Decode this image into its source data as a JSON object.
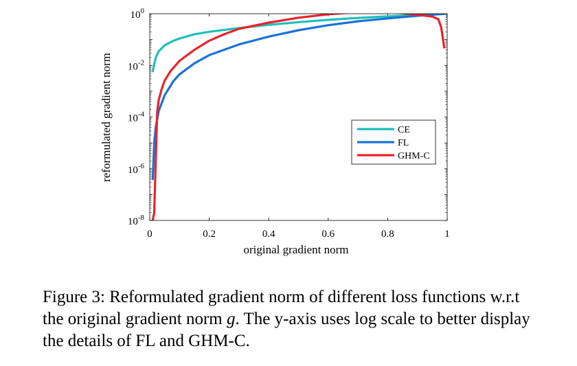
{
  "chart_data": {
    "type": "line",
    "xlabel": "original gradient norm",
    "ylabel": "reformulated gradient norm",
    "x_scale": "linear",
    "y_scale": "log",
    "xlim": [
      0,
      1
    ],
    "ylim": [
      1e-08,
      1
    ],
    "x_ticks": [
      0,
      0.2,
      0.4,
      0.6,
      0.8,
      1
    ],
    "x_tick_labels": [
      "0",
      "0.2",
      "0.4",
      "0.6",
      "0.8",
      "1"
    ],
    "y_ticks": [
      1e-08,
      1e-06,
      0.0001,
      0.01,
      1
    ],
    "y_tick_labels": [
      {
        "base": "10",
        "exp": "-8"
      },
      {
        "base": "10",
        "exp": "-6"
      },
      {
        "base": "10",
        "exp": "-4"
      },
      {
        "base": "10",
        "exp": "-2"
      },
      {
        "base": "10",
        "exp": "0"
      }
    ],
    "grid": false,
    "legend_position": "center-right",
    "series": [
      {
        "name": "CE",
        "color": "#1fbfb8",
        "x": [
          0.01,
          0.02,
          0.03,
          0.05,
          0.08,
          0.1,
          0.15,
          0.2,
          0.3,
          0.4,
          0.5,
          0.6,
          0.7,
          0.8,
          0.9,
          0.99
        ],
        "y": [
          0.006,
          0.02,
          0.035,
          0.06,
          0.09,
          0.11,
          0.16,
          0.2,
          0.28,
          0.37,
          0.47,
          0.58,
          0.69,
          0.79,
          0.9,
          0.99
        ]
      },
      {
        "name": "FL",
        "color": "#1a72d6",
        "x": [
          0.01,
          0.015,
          0.02,
          0.03,
          0.05,
          0.08,
          0.1,
          0.15,
          0.2,
          0.3,
          0.4,
          0.5,
          0.6,
          0.7,
          0.8,
          0.9,
          0.95,
          0.99
        ],
        "y": [
          4e-07,
          1e-05,
          4e-05,
          0.00017,
          0.0007,
          0.0025,
          0.0045,
          0.012,
          0.025,
          0.065,
          0.13,
          0.23,
          0.36,
          0.51,
          0.66,
          0.83,
          0.92,
          0.98
        ]
      },
      {
        "name": "GHM-C",
        "color": "#e8232b",
        "x": [
          0.01,
          0.015,
          0.02,
          0.025,
          0.03,
          0.04,
          0.05,
          0.07,
          0.1,
          0.15,
          0.2,
          0.25,
          0.3,
          0.4,
          0.5,
          0.6,
          0.7,
          0.75,
          0.8,
          0.85,
          0.9,
          0.95,
          0.97,
          0.98,
          0.99
        ],
        "y": [
          1e-08,
          2e-08,
          2e-06,
          0.00015,
          0.00045,
          0.0012,
          0.0026,
          0.006,
          0.015,
          0.04,
          0.09,
          0.16,
          0.26,
          0.45,
          0.7,
          0.95,
          1.15,
          1.2,
          1.15,
          1.05,
          0.92,
          0.78,
          0.62,
          0.3,
          0.05
        ]
      }
    ]
  },
  "caption": {
    "text_before": "Figure 3: Reformulated gradient norm of different loss functions w.r.t the original gradient norm ",
    "variable": "g",
    "text_after": ". The y-axis uses log scale to better display the details of FL and GHM-C."
  }
}
